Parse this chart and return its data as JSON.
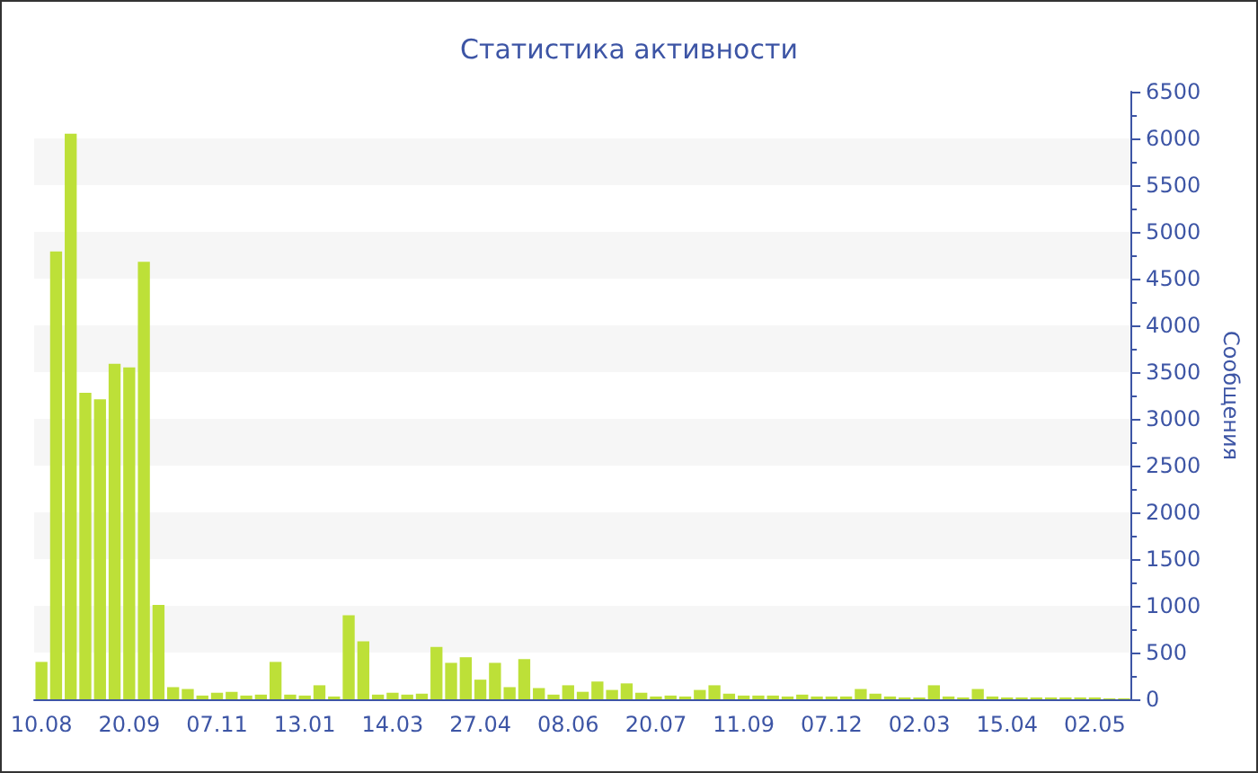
{
  "chart_data": {
    "type": "bar",
    "title": "Статистика активности",
    "ylabel": "Сообщения",
    "categories": [
      "10.08",
      null,
      null,
      null,
      null,
      null,
      "20.09",
      null,
      null,
      null,
      null,
      null,
      "07.11",
      null,
      null,
      null,
      null,
      null,
      "13.01",
      null,
      null,
      null,
      null,
      null,
      "14.03",
      null,
      null,
      null,
      null,
      null,
      "27.04",
      null,
      null,
      null,
      null,
      null,
      "08.06",
      null,
      null,
      null,
      null,
      null,
      "20.07",
      null,
      null,
      null,
      null,
      null,
      "11.09",
      null,
      null,
      null,
      null,
      null,
      "07.12",
      null,
      null,
      null,
      null,
      null,
      "02.03",
      null,
      null,
      null,
      null,
      null,
      "15.04",
      null,
      null,
      null,
      null,
      null,
      "02.05",
      null,
      null
    ],
    "values": [
      400,
      4790,
      6050,
      3280,
      3210,
      3590,
      3550,
      4680,
      1010,
      130,
      110,
      40,
      70,
      80,
      40,
      50,
      400,
      50,
      40,
      150,
      30,
      900,
      620,
      50,
      70,
      50,
      60,
      560,
      390,
      450,
      210,
      390,
      130,
      430,
      120,
      50,
      150,
      80,
      190,
      100,
      170,
      70,
      30,
      40,
      30,
      100,
      150,
      60,
      40,
      40,
      40,
      30,
      50,
      30,
      30,
      30,
      110,
      60,
      30,
      20,
      20,
      150,
      30,
      20,
      110,
      30,
      20,
      20,
      20,
      20,
      20,
      20,
      20,
      10,
      10
    ],
    "color": "#bde038",
    "ylim": [
      0,
      6500
    ],
    "yticks": [
      0,
      500,
      1000,
      1500,
      2000,
      2500,
      3000,
      3500,
      4000,
      4500,
      5000,
      5500,
      6000,
      6500
    ]
  }
}
